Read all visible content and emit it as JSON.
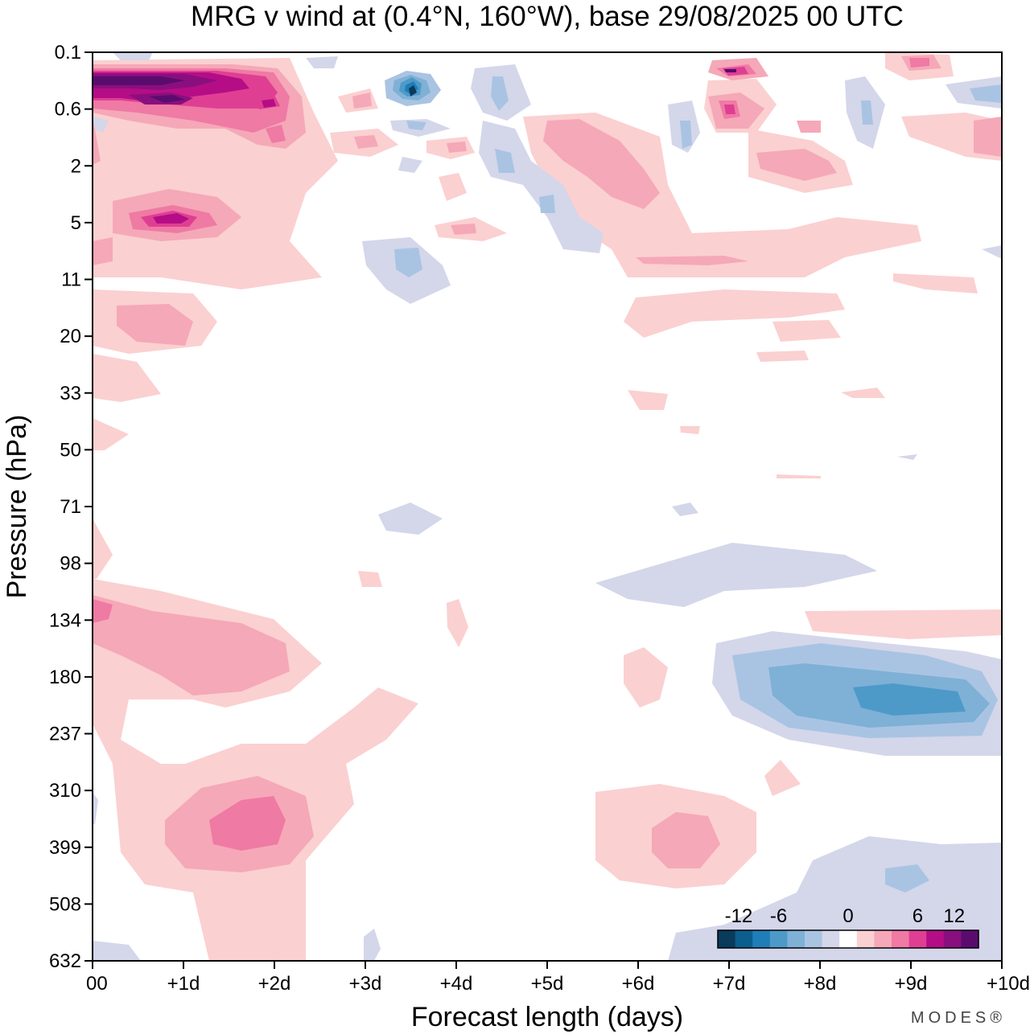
{
  "chart_data": {
    "type": "heatmap",
    "title": "MRG v wind at (0.4°N, 160°W),  base 29/08/2025  00 UTC",
    "xlabel": "Forecast length (days)",
    "ylabel": "Pressure (hPa)",
    "x_ticks": [
      "00",
      "+1d",
      "+2d",
      "+3d",
      "+4d",
      "+5d",
      "+6d",
      "+7d",
      "+8d",
      "+9d",
      "+10d"
    ],
    "xlim_days": [
      0,
      10
    ],
    "y_ticks": [
      "0.1",
      "0.6",
      "2",
      "5",
      "11",
      "20",
      "33",
      "50",
      "71",
      "98",
      "134",
      "180",
      "237",
      "310",
      "399",
      "508",
      "632"
    ],
    "y_scale": "log-like, top=0.1 hPa, bottom=632 hPa",
    "colorbar": {
      "labels": [
        "-12",
        "-6",
        "0",
        "6",
        "12"
      ],
      "level_colors": [
        "#0a3a5c",
        "#0b5e8e",
        "#1f7db8",
        "#4d9ac9",
        "#7fb0d6",
        "#a9c4e2",
        "#d4d6ea",
        "#ffffff",
        "#fbd0d0",
        "#f5a8b8",
        "#ef7aa4",
        "#df3f93",
        "#b50d86",
        "#8a0f7e",
        "#5a0c6e"
      ],
      "placement": "bottom-right"
    },
    "features": [
      {
        "sign": "positive",
        "max_level": 7,
        "days": [
          0,
          2
        ],
        "pressure_hPa": [
          0.1,
          1.5
        ],
        "note": "strong positive anomaly near top-left"
      },
      {
        "sign": "positive",
        "max_level": 5,
        "days": [
          0.3,
          1.5
        ],
        "pressure_hPa": [
          3,
          7
        ]
      },
      {
        "sign": "negative",
        "max_level": 6,
        "days": [
          3.3,
          3.8
        ],
        "pressure_hPa": [
          0.3,
          0.8
        ]
      },
      {
        "sign": "positive",
        "max_level": 3,
        "days": [
          0,
          2.2
        ],
        "pressure_hPa": [
          100,
          220
        ]
      },
      {
        "sign": "positive",
        "max_level": 4,
        "days": [
          0.8,
          2.3
        ],
        "pressure_hPa": [
          300,
          500
        ]
      },
      {
        "sign": "negative",
        "max_level": 4,
        "days": [
          7,
          10
        ],
        "pressure_hPa": [
          150,
          260
        ],
        "note": "negative anomaly ~ -8 m/s"
      },
      {
        "sign": "positive",
        "max_level": 2,
        "days": [
          5.5,
          7.3
        ],
        "pressure_hPa": [
          300,
          550
        ]
      },
      {
        "sign": "negative",
        "max_level": 2,
        "days": [
          6.5,
          10
        ],
        "pressure_hPa": [
          400,
          632
        ]
      }
    ]
  },
  "branding": {
    "logo_text": "MODES®"
  }
}
